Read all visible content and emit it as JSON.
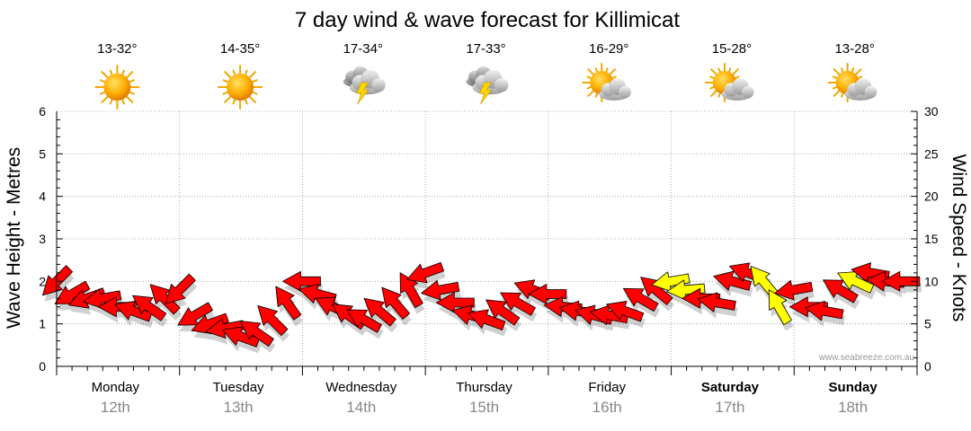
{
  "chart_data": {
    "type": "line",
    "title": "7 day wind & wave forecast for Killimicat",
    "ylabel": "Wave Height - Metres",
    "y2label": "Wind Speed - Knots",
    "ylim": [
      0,
      6
    ],
    "y2lim": [
      0,
      30
    ],
    "y_ticks": [
      "0",
      "1",
      "2",
      "3",
      "4",
      "5",
      "6"
    ],
    "y2_ticks": [
      "0",
      "5",
      "10",
      "15",
      "20",
      "25",
      "30"
    ],
    "grid": true,
    "watermark": "www.seabreeze.com.au",
    "days": [
      {
        "name": "Monday",
        "date": "12th",
        "temp": "13-32°",
        "icon": "sunny-icon",
        "bold": false
      },
      {
        "name": "Tuesday",
        "date": "13th",
        "temp": "14-35°",
        "icon": "sunny-icon",
        "bold": false
      },
      {
        "name": "Wednesday",
        "date": "14th",
        "temp": "17-34°",
        "icon": "thunderstorm-icon",
        "bold": false
      },
      {
        "name": "Thursday",
        "date": "15th",
        "temp": "17-33°",
        "icon": "thunderstorm-icon",
        "bold": false
      },
      {
        "name": "Friday",
        "date": "16th",
        "temp": "16-29°",
        "icon": "partly-cloudy-icon",
        "bold": false
      },
      {
        "name": "Saturday",
        "date": "17th",
        "temp": "15-28°",
        "icon": "partly-cloudy-icon",
        "bold": true
      },
      {
        "name": "Sunday",
        "date": "18th",
        "temp": "13-28°",
        "icon": "partly-cloudy-icon",
        "bold": true
      }
    ],
    "colors": {
      "arrow_red": "#ff0000",
      "arrow_yellow": "#ffff00",
      "outline": "#000000",
      "grid": "#999999",
      "date": "#888888"
    },
    "series": [
      {
        "x_hours": [
          0,
          3,
          6,
          9,
          12,
          15,
          18,
          21,
          24,
          27,
          30,
          33,
          36,
          39,
          42,
          45,
          48,
          51,
          54,
          57,
          60,
          63,
          66,
          69,
          72,
          75,
          78,
          81,
          84,
          87,
          90,
          93,
          96,
          99,
          102,
          105,
          108,
          111,
          114,
          117,
          120,
          123,
          126,
          129,
          132,
          135,
          138,
          141,
          144,
          147,
          150,
          153,
          156,
          159,
          162,
          165
        ],
        "wind_knots": [
          10,
          8.5,
          8,
          8,
          7,
          6.5,
          7,
          8,
          9,
          6,
          5,
          4.5,
          3.5,
          4,
          5.5,
          7.5,
          10,
          8.5,
          7,
          6,
          5.5,
          6.5,
          7.5,
          9,
          11,
          9,
          7.5,
          6,
          5.5,
          6.5,
          7.5,
          9,
          8.5,
          7,
          6.5,
          6,
          6,
          6.5,
          8,
          9,
          10,
          9,
          8,
          7.5,
          10,
          11,
          10,
          7,
          9,
          7,
          6.5,
          9,
          10,
          11,
          10,
          10
        ],
        "wind_dir_deg": [
          135,
          150,
          160,
          170,
          180,
          200,
          215,
          225,
          135,
          150,
          160,
          170,
          200,
          215,
          225,
          235,
          180,
          195,
          205,
          215,
          210,
          220,
          230,
          240,
          160,
          170,
          180,
          195,
          200,
          215,
          210,
          200,
          180,
          185,
          190,
          195,
          190,
          200,
          210,
          220,
          170,
          175,
          180,
          190,
          195,
          200,
          230,
          240,
          170,
          180,
          190,
          210,
          205,
          190,
          185,
          180
        ],
        "color": [
          "red",
          "red",
          "red",
          "red",
          "red",
          "red",
          "red",
          "red",
          "red",
          "red",
          "red",
          "red",
          "red",
          "red",
          "red",
          "red",
          "red",
          "red",
          "red",
          "red",
          "red",
          "red",
          "red",
          "red",
          "red",
          "red",
          "red",
          "red",
          "red",
          "red",
          "red",
          "red",
          "red",
          "red",
          "red",
          "red",
          "red",
          "red",
          "red",
          "red",
          "yellow",
          "yellow",
          "red",
          "red",
          "red",
          "red",
          "yellow",
          "yellow",
          "red",
          "red",
          "red",
          "red",
          "yellow",
          "red",
          "red",
          "red"
        ]
      }
    ]
  }
}
